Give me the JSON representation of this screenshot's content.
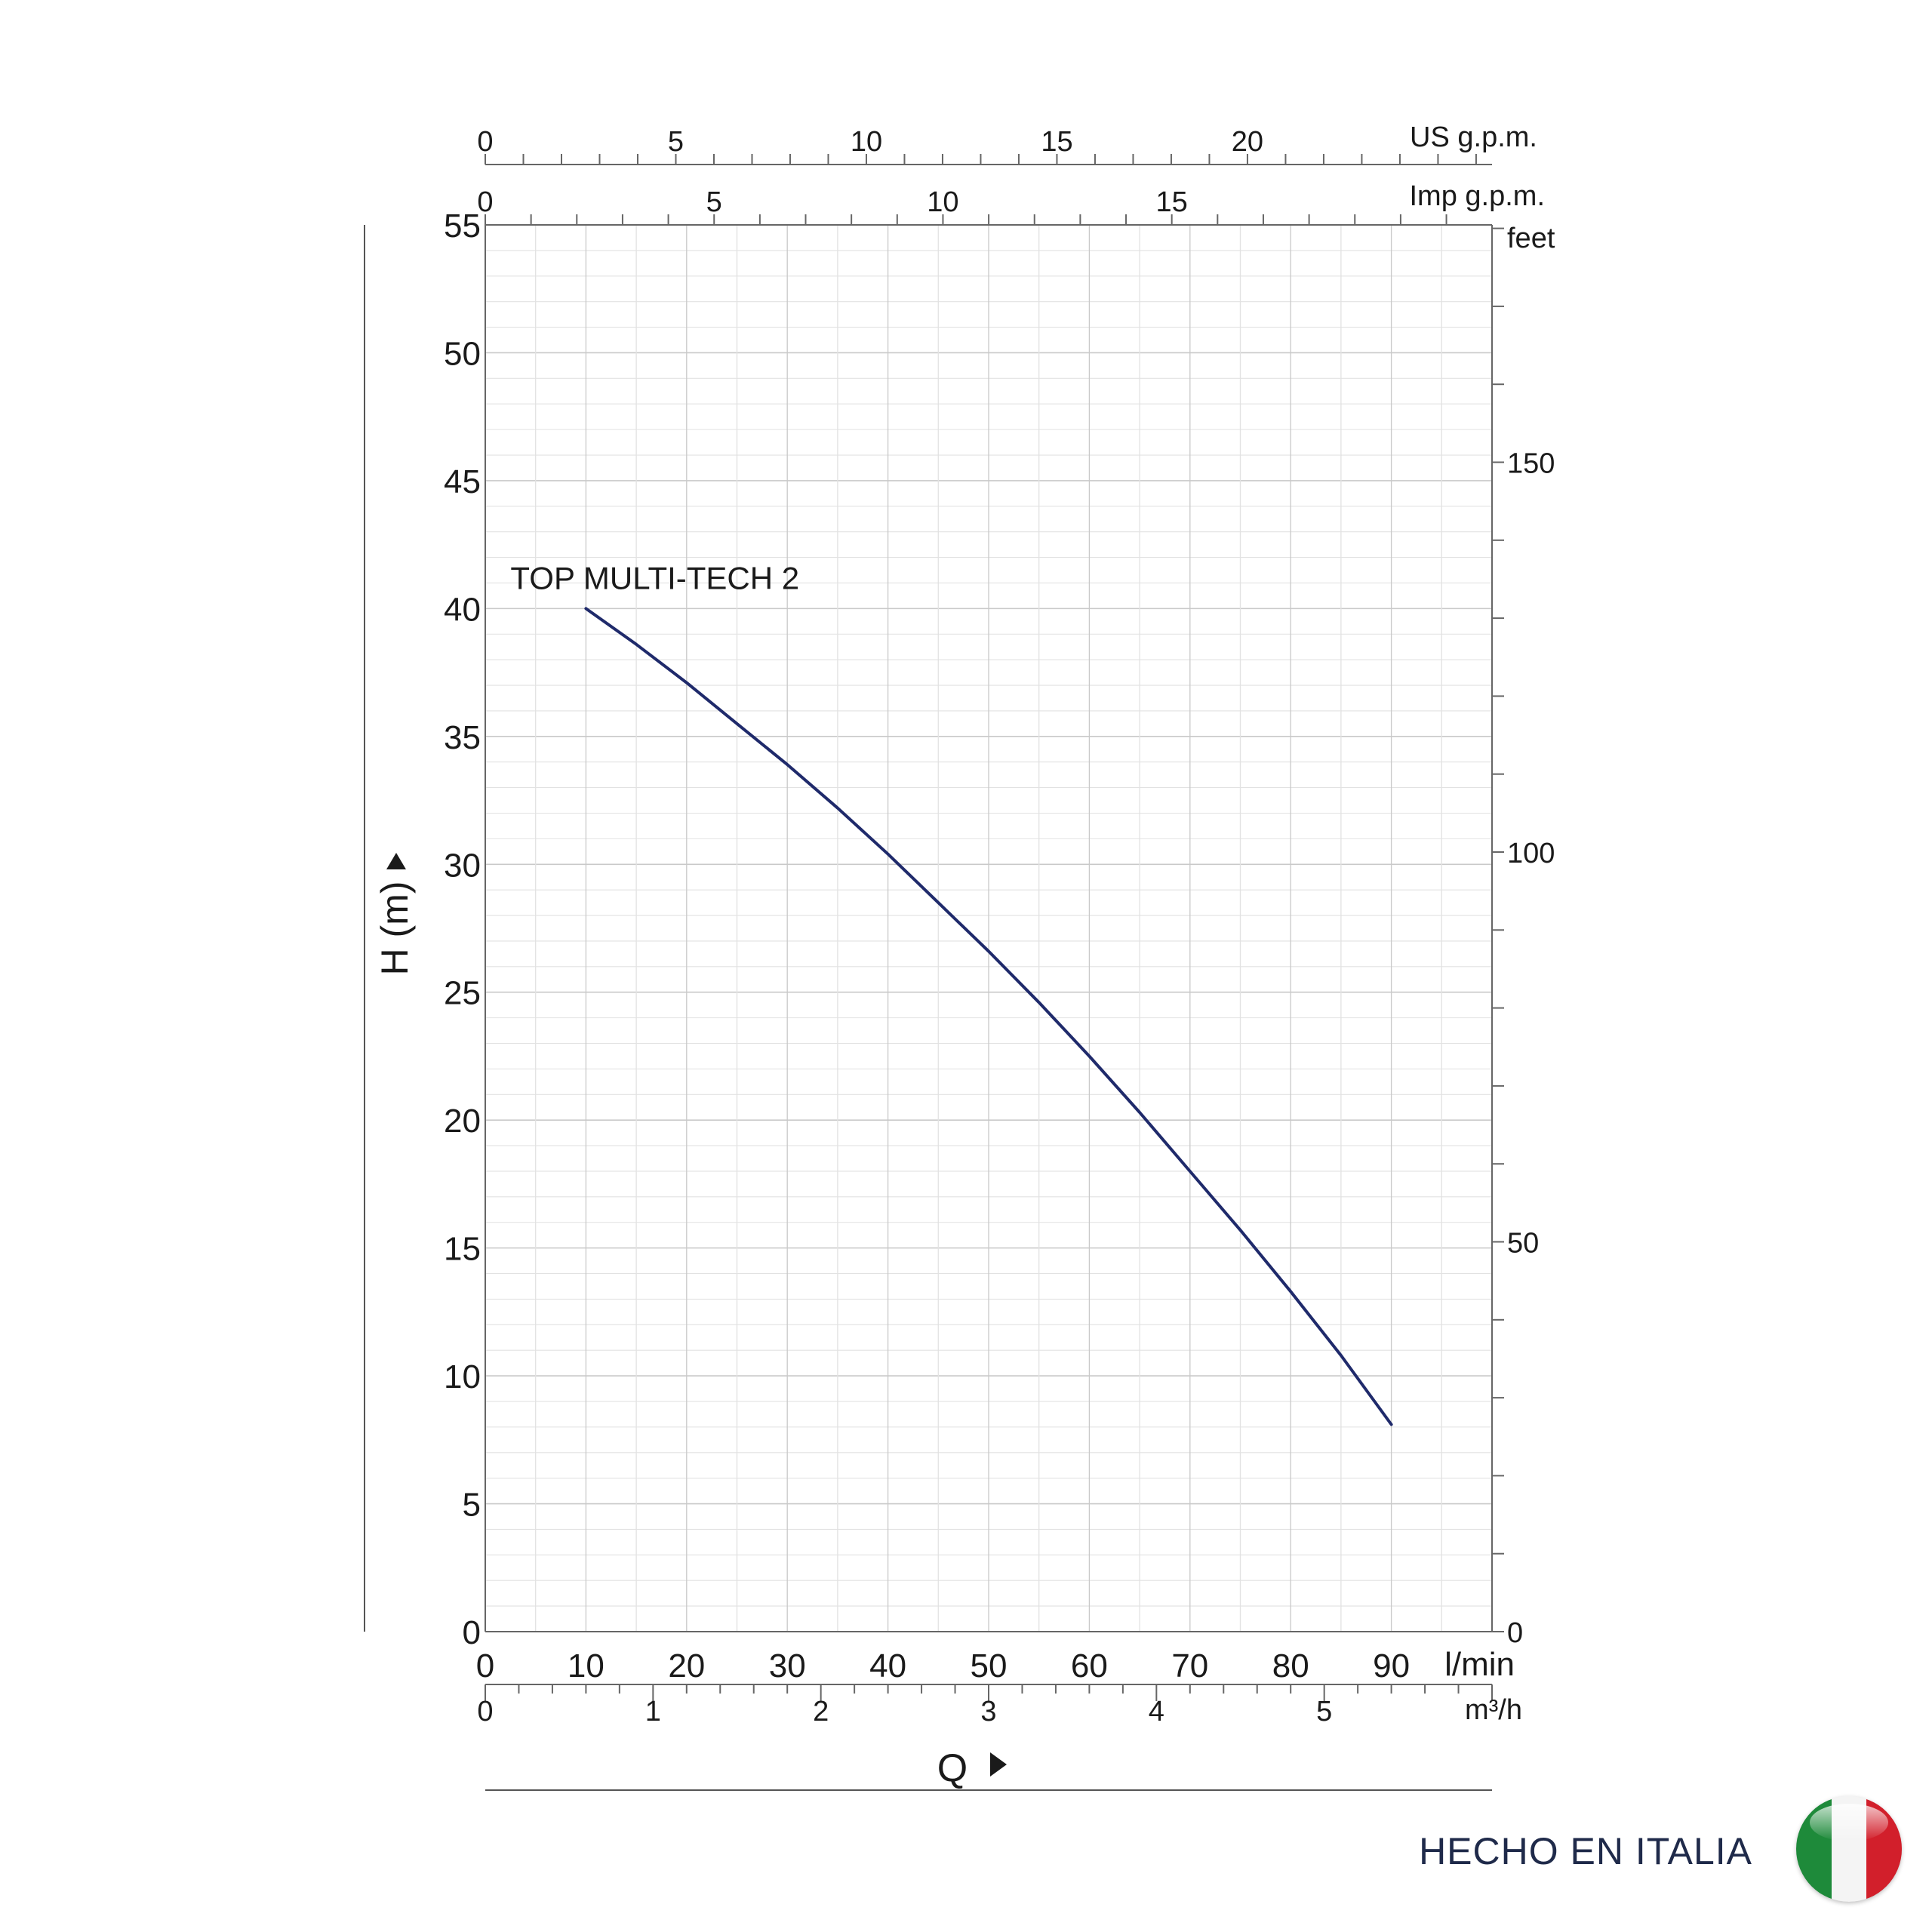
{
  "chart_data": {
    "type": "line",
    "title": "",
    "series": [
      {
        "name": "TOP MULTI-TECH 2",
        "color": "#1f2a6b",
        "points": [
          [
            10,
            40.0
          ],
          [
            15,
            38.6
          ],
          [
            20,
            37.1
          ],
          [
            25,
            35.5
          ],
          [
            30,
            33.9
          ],
          [
            35,
            32.2
          ],
          [
            40,
            30.4
          ],
          [
            45,
            28.5
          ],
          [
            50,
            26.6
          ],
          [
            55,
            24.6
          ],
          [
            60,
            22.5
          ],
          [
            65,
            20.3
          ],
          [
            70,
            18.0
          ],
          [
            75,
            15.7
          ],
          [
            80,
            13.3
          ],
          [
            85,
            10.8
          ],
          [
            90,
            8.1
          ]
        ]
      }
    ],
    "y_left": {
      "label": "H  (m)",
      "min": 0,
      "max": 55,
      "ticks": [
        "0",
        "5",
        "10",
        "15",
        "20",
        "25",
        "30",
        "35",
        "40",
        "45",
        "50",
        "55"
      ]
    },
    "y_right": {
      "unit": "feet",
      "ticks": [
        "0",
        "50",
        "100",
        "150"
      ]
    },
    "x_bottom": {
      "unit": "l/min",
      "min": 0,
      "max": 100,
      "ticks": [
        "0",
        "10",
        "20",
        "30",
        "40",
        "50",
        "60",
        "70",
        "80",
        "90"
      ]
    },
    "x_m3h": {
      "unit": "m³/h",
      "ticks": [
        "0",
        "1",
        "2",
        "3",
        "4",
        "5"
      ]
    },
    "x_imp": {
      "unit": "Imp g.p.m.",
      "ticks": [
        "0",
        "5",
        "10",
        "15"
      ]
    },
    "x_us": {
      "unit": "US g.p.m.",
      "ticks": [
        "0",
        "5",
        "10",
        "15",
        "20"
      ]
    },
    "x_label": "Q",
    "grid": true
  },
  "footer": {
    "text": "HECHO EN ITALIA",
    "flag_colors": [
      "#1e8a3a",
      "#f4f4f4",
      "#d21f2b"
    ]
  }
}
